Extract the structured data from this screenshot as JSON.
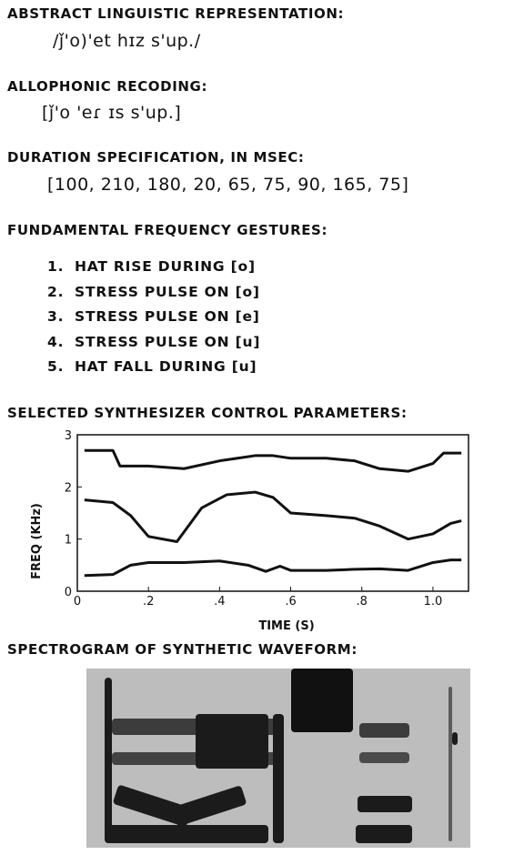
{
  "sections": {
    "abstract": {
      "heading": "ABSTRACT LINGUISTIC REPRESENTATION:",
      "text": "/ǰ'o)'et hɪz s'up./"
    },
    "allophonic": {
      "heading": "ALLOPHONIC RECODING:",
      "text": "[ǰ'o  'eɾ  ɪs  s'up.]"
    },
    "duration": {
      "heading": "DURATION SPECIFICATION, IN MSEC:",
      "text": "[100, 210, 180, 20, 65, 75, 90, 165, 75]"
    },
    "f0": {
      "heading": "FUNDAMENTAL FREQUENCY GESTURES:",
      "items": [
        {
          "num": "1.",
          "text": "HAT RISE DURING [o]"
        },
        {
          "num": "2.",
          "text": "STRESS PULSE ON [o]"
        },
        {
          "num": "3.",
          "text": "STRESS PULSE ON [e]"
        },
        {
          "num": "4.",
          "text": "STRESS PULSE ON [u]"
        },
        {
          "num": "5.",
          "text": "HAT FALL DURING [u]"
        }
      ]
    },
    "synth": {
      "heading": "SELECTED SYNTHESIZER CONTROL PARAMETERS:"
    },
    "spectrogram": {
      "heading": "SPECTROGRAM OF SYNTHETIC WAVEFORM:"
    }
  },
  "chart_data": {
    "type": "line",
    "title": "",
    "xlabel": "TIME (S)",
    "ylabel": "FREQ (KHz)",
    "xlim": [
      0,
      1.1
    ],
    "ylim": [
      0,
      3
    ],
    "x_ticks": [
      0,
      0.2,
      0.4,
      0.6,
      0.8,
      1.0
    ],
    "x_tick_labels": [
      "0",
      ".2",
      ".4",
      ".6",
      ".8",
      "1.0"
    ],
    "y_ticks": [
      0,
      1,
      2,
      3
    ],
    "y_tick_labels": [
      "0",
      "1",
      "2",
      "3"
    ],
    "series": [
      {
        "x": [
          0.02,
          0.1,
          0.12,
          0.2,
          0.3,
          0.4,
          0.5,
          0.55,
          0.6,
          0.7,
          0.78,
          0.85,
          0.93,
          1.0,
          1.03,
          1.08
        ],
        "y": [
          2.7,
          2.7,
          2.4,
          2.4,
          2.35,
          2.5,
          2.6,
          2.6,
          2.55,
          2.55,
          2.5,
          2.35,
          2.3,
          2.45,
          2.65,
          2.65
        ]
      },
      {
        "x": [
          0.02,
          0.1,
          0.15,
          0.2,
          0.28,
          0.35,
          0.42,
          0.5,
          0.55,
          0.6,
          0.7,
          0.78,
          0.85,
          0.93,
          1.0,
          1.05,
          1.08
        ],
        "y": [
          1.75,
          1.7,
          1.45,
          1.05,
          0.95,
          1.6,
          1.85,
          1.9,
          1.8,
          1.5,
          1.45,
          1.4,
          1.25,
          1.0,
          1.1,
          1.3,
          1.35
        ]
      },
      {
        "x": [
          0.02,
          0.1,
          0.15,
          0.2,
          0.3,
          0.4,
          0.48,
          0.53,
          0.57,
          0.6,
          0.7,
          0.78,
          0.85,
          0.93,
          1.0,
          1.05,
          1.08
        ],
        "y": [
          0.3,
          0.32,
          0.5,
          0.55,
          0.55,
          0.58,
          0.5,
          0.38,
          0.48,
          0.4,
          0.4,
          0.42,
          0.43,
          0.4,
          0.55,
          0.6,
          0.6
        ]
      }
    ]
  }
}
